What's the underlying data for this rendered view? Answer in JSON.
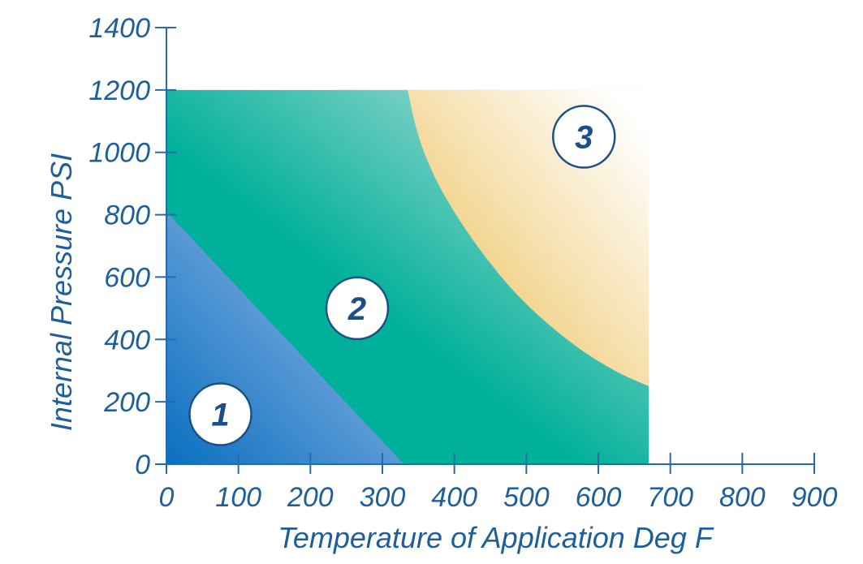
{
  "chart_data": {
    "type": "area",
    "title": "",
    "xlabel": "Temperature of Application Deg F",
    "ylabel": "Internal Pressure PSI",
    "xlim": [
      0,
      900
    ],
    "ylim": [
      0,
      1400
    ],
    "x_ticks": [
      0,
      100,
      200,
      300,
      400,
      500,
      600,
      700,
      800,
      900
    ],
    "y_ticks": [
      0,
      200,
      400,
      600,
      800,
      1000,
      1200,
      1400
    ],
    "x_tick_labels": [
      "0",
      "100",
      "200",
      "300",
      "400",
      "500",
      "600",
      "700",
      "800",
      "900"
    ],
    "y_tick_labels": [
      "0",
      "200",
      "400",
      "600",
      "800",
      "1000",
      "1200",
      "1400"
    ],
    "grid": false,
    "regions": [
      {
        "label": "1",
        "label_at": [
          75,
          160
        ],
        "boundary": [
          [
            0,
            0
          ],
          [
            0,
            810
          ],
          [
            330,
            0
          ]
        ],
        "colors": [
          "#0a6fc0",
          "#a7c3eb"
        ]
      },
      {
        "label": "2",
        "label_at": [
          265,
          500
        ],
        "boundary": [
          [
            0,
            0
          ],
          [
            0,
            1200
          ],
          [
            670,
            1200
          ],
          [
            670,
            0
          ]
        ],
        "colors": [
          "#00b09a",
          "#b4ded8"
        ]
      },
      {
        "label": "3",
        "label_at": [
          580,
          1050
        ],
        "boundary": [
          [
            335,
            1200
          ],
          [
            350,
            1040
          ],
          [
            380,
            880
          ],
          [
            430,
            700
          ],
          [
            490,
            530
          ],
          [
            560,
            390
          ],
          [
            620,
            300
          ],
          [
            670,
            250
          ],
          [
            670,
            1200
          ]
        ],
        "colors": [
          "#efc66a",
          "#ffffff"
        ]
      }
    ]
  },
  "colors": {
    "axis": "#2a69a8",
    "text": "#1f5f99",
    "label_circle_fill": "#ffffff",
    "label_circle_stroke": "#1a4f88"
  }
}
